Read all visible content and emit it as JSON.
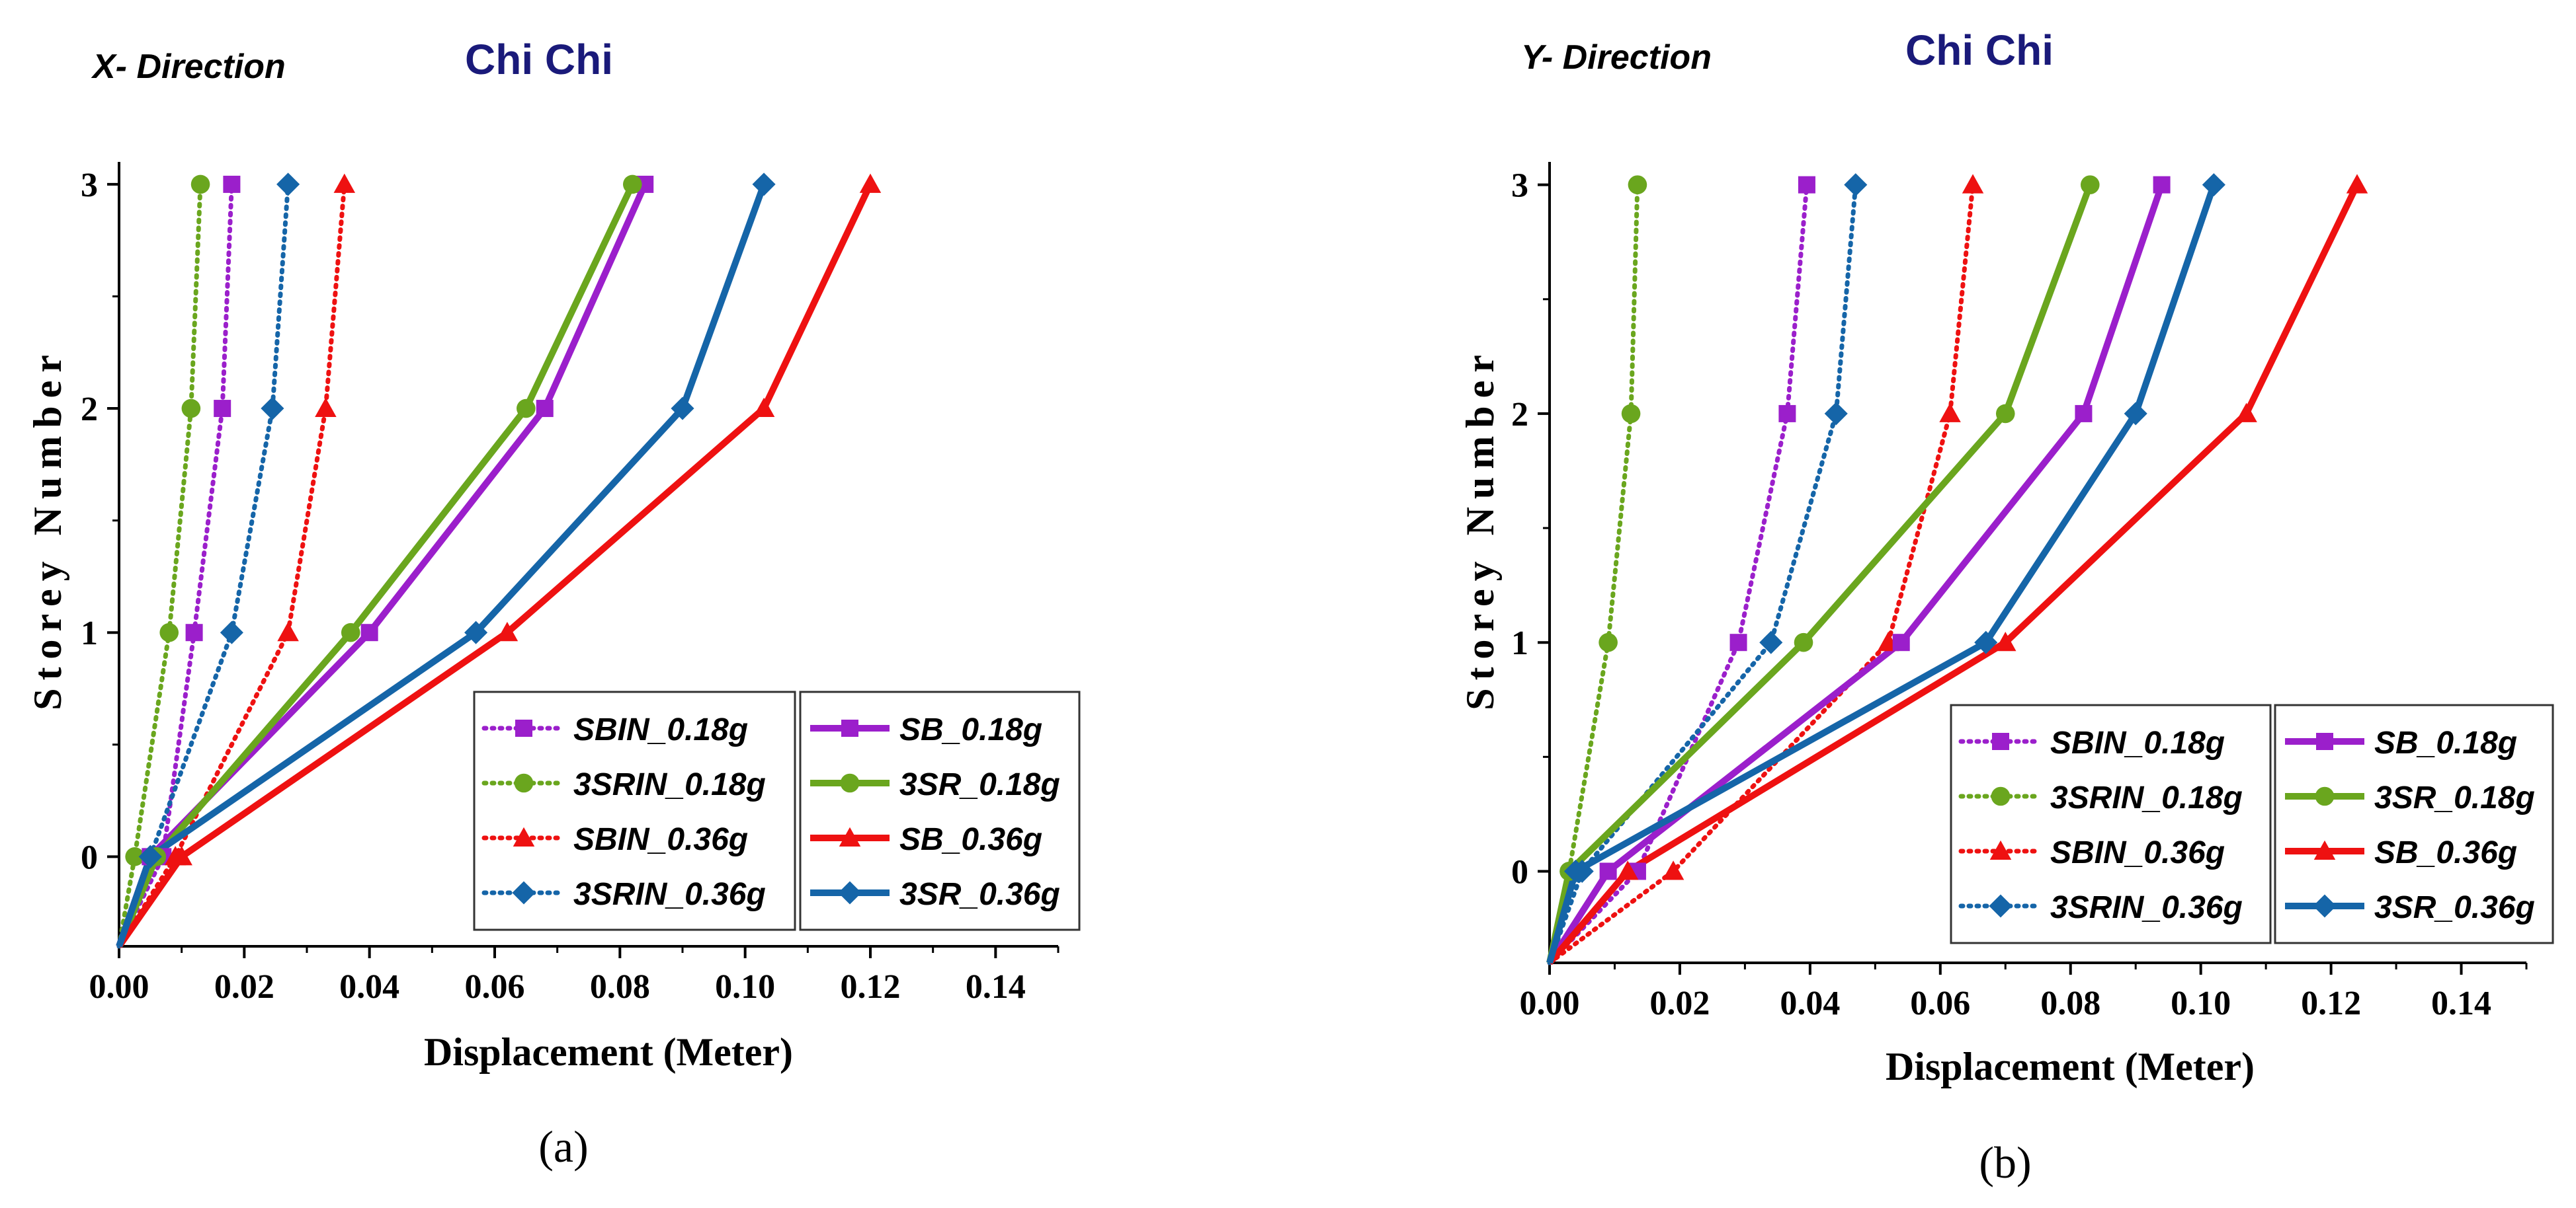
{
  "colors": {
    "purple": "#9B1FCB",
    "green": "#6AA61E",
    "red": "#EE1111",
    "blue": "#1565A8",
    "eq_title": "#1a1a7a"
  },
  "chart_data": [
    {
      "type": "line",
      "panel_label": "(a)",
      "direction_label": "X- Direction",
      "title": "Chi Chi",
      "xlabel": "Displacement (Meter)",
      "ylabel": "Storey Number",
      "xlim": [
        0,
        0.15
      ],
      "ylim": [
        -0.4,
        3.1
      ],
      "xticks": [
        "0.00",
        "0.02",
        "0.04",
        "0.06",
        "0.08",
        "0.10",
        "0.12",
        "0.14"
      ],
      "yticks": [
        "0",
        "1",
        "2",
        "3"
      ],
      "series": [
        {
          "name": "SBIN_0.18g",
          "color": "purple",
          "style": "dotted",
          "marker": "square",
          "x": [
            0,
            0.007,
            0.012,
            0.0165,
            0.018
          ],
          "y": [
            -0.4,
            0,
            1,
            2,
            3
          ]
        },
        {
          "name": "3SRIN_0.18g",
          "color": "green",
          "style": "dotted",
          "marker": "circle",
          "x": [
            0,
            0.0025,
            0.008,
            0.0115,
            0.013
          ],
          "y": [
            -0.4,
            0,
            1,
            2,
            3
          ]
        },
        {
          "name": "SBIN_0.36g",
          "color": "red",
          "style": "dotted",
          "marker": "triangle",
          "x": [
            0,
            0.009,
            0.027,
            0.033,
            0.036
          ],
          "y": [
            -0.4,
            0,
            1,
            2,
            3
          ]
        },
        {
          "name": "3SRIN_0.36g",
          "color": "blue",
          "style": "dotted",
          "marker": "diamond",
          "x": [
            0,
            0.005,
            0.018,
            0.0245,
            0.027
          ],
          "y": [
            -0.4,
            0,
            1,
            2,
            3
          ]
        },
        {
          "name": "SB_0.18g",
          "color": "purple",
          "style": "solid",
          "marker": "square",
          "x": [
            0,
            0.005,
            0.04,
            0.068,
            0.084
          ],
          "y": [
            -0.4,
            0,
            1,
            2,
            3
          ]
        },
        {
          "name": "3SR_0.18g",
          "color": "green",
          "style": "solid",
          "marker": "circle",
          "x": [
            0,
            0.006,
            0.037,
            0.065,
            0.082
          ],
          "y": [
            -0.4,
            0,
            1,
            2,
            3
          ]
        },
        {
          "name": "SB_0.36g",
          "color": "red",
          "style": "solid",
          "marker": "triangle",
          "x": [
            0,
            0.01,
            0.062,
            0.103,
            0.12
          ],
          "y": [
            -0.4,
            0,
            1,
            2,
            3
          ]
        },
        {
          "name": "3SR_0.36g",
          "color": "blue",
          "style": "solid",
          "marker": "diamond",
          "x": [
            0,
            0.005,
            0.057,
            0.09,
            0.103
          ],
          "y": [
            -0.4,
            0,
            1,
            2,
            3
          ]
        }
      ]
    },
    {
      "type": "line",
      "panel_label": "(b)",
      "direction_label": "Y- Direction",
      "title": "Chi Chi",
      "xlabel": "Displacement (Meter)",
      "ylabel": "Storey Number",
      "xlim": [
        0,
        0.15
      ],
      "ylim": [
        -0.4,
        3.1
      ],
      "xticks": [
        "0.00",
        "0.02",
        "0.04",
        "0.06",
        "0.08",
        "0.10",
        "0.12",
        "0.14"
      ],
      "yticks": [
        "0",
        "1",
        "2",
        "3"
      ],
      "series": [
        {
          "name": "SBIN_0.18g",
          "color": "purple",
          "style": "dotted",
          "marker": "square",
          "x": [
            0,
            0.0135,
            0.029,
            0.0365,
            0.0395
          ],
          "y": [
            -0.4,
            0,
            1,
            2,
            3
          ]
        },
        {
          "name": "3SRIN_0.18g",
          "color": "green",
          "style": "dotted",
          "marker": "circle",
          "x": [
            0,
            0.003,
            0.009,
            0.0125,
            0.0135
          ],
          "y": [
            -0.4,
            0,
            1,
            2,
            3
          ]
        },
        {
          "name": "SBIN_0.36g",
          "color": "red",
          "style": "dotted",
          "marker": "triangle",
          "x": [
            0,
            0.019,
            0.052,
            0.0615,
            0.065
          ],
          "y": [
            -0.4,
            0,
            1,
            2,
            3
          ]
        },
        {
          "name": "3SRIN_0.36g",
          "color": "blue",
          "style": "dotted",
          "marker": "diamond",
          "x": [
            0,
            0.005,
            0.034,
            0.044,
            0.047
          ],
          "y": [
            -0.4,
            0,
            1,
            2,
            3
          ]
        },
        {
          "name": "SB_0.18g",
          "color": "purple",
          "style": "solid",
          "marker": "square",
          "x": [
            0,
            0.009,
            0.054,
            0.082,
            0.094
          ],
          "y": [
            -0.4,
            0,
            1,
            2,
            3
          ]
        },
        {
          "name": "3SR_0.18g",
          "color": "green",
          "style": "solid",
          "marker": "circle",
          "x": [
            0,
            0.003,
            0.039,
            0.07,
            0.083
          ],
          "y": [
            -0.4,
            0,
            1,
            2,
            3
          ]
        },
        {
          "name": "SB_0.36g",
          "color": "red",
          "style": "solid",
          "marker": "triangle",
          "x": [
            0,
            0.012,
            0.07,
            0.107,
            0.124
          ],
          "y": [
            -0.4,
            0,
            1,
            2,
            3
          ]
        },
        {
          "name": "3SR_0.36g",
          "color": "blue",
          "style": "solid",
          "marker": "diamond",
          "x": [
            0,
            0.004,
            0.067,
            0.09,
            0.102
          ],
          "y": [
            -0.4,
            0,
            1,
            2,
            3
          ]
        }
      ]
    }
  ]
}
